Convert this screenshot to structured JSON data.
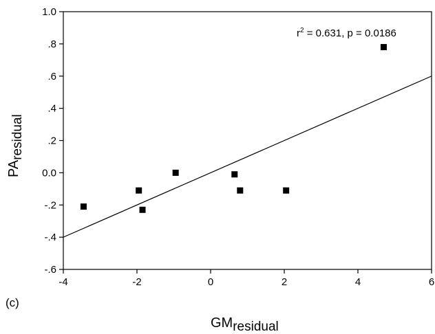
{
  "chart_data": {
    "type": "scatter",
    "panel_label": "(c)",
    "xlabel": {
      "main": "GM",
      "sub": "residual"
    },
    "ylabel": {
      "main": "PA",
      "sub": "residual"
    },
    "xlim": [
      -4,
      6
    ],
    "ylim": [
      -0.6,
      1.0
    ],
    "x_ticks": [
      {
        "value": -4,
        "label": "-4"
      },
      {
        "value": -2,
        "label": "-2"
      },
      {
        "value": 0,
        "label": "0"
      },
      {
        "value": 2,
        "label": "2"
      },
      {
        "value": 4,
        "label": "4"
      },
      {
        "value": 6,
        "label": "6"
      }
    ],
    "y_ticks": [
      {
        "value": -0.6,
        "label": "-.6"
      },
      {
        "value": -0.4,
        "label": "-.4"
      },
      {
        "value": -0.2,
        "label": "-.2"
      },
      {
        "value": 0.0,
        "label": "0.0"
      },
      {
        "value": 0.2,
        "label": ".2"
      },
      {
        "value": 0.4,
        "label": ".4"
      },
      {
        "value": 0.6,
        "label": ".6"
      },
      {
        "value": 0.8,
        "label": ".8"
      },
      {
        "value": 1.0,
        "label": "1.0"
      }
    ],
    "grid": false,
    "points": [
      {
        "x": -3.45,
        "y": -0.21
      },
      {
        "x": -1.95,
        "y": -0.11
      },
      {
        "x": -1.85,
        "y": -0.23
      },
      {
        "x": -0.95,
        "y": 0.0
      },
      {
        "x": 0.65,
        "y": -0.01
      },
      {
        "x": 0.8,
        "y": -0.11
      },
      {
        "x": 2.05,
        "y": -0.11
      },
      {
        "x": 4.7,
        "y": 0.78
      }
    ],
    "regression_line": {
      "x": [
        -4,
        6
      ],
      "y": [
        -0.4,
        0.6
      ]
    },
    "annotation": {
      "r_text": "r",
      "r_sup": "2",
      "rest": " = 0.631, p = 0.0186"
    }
  }
}
